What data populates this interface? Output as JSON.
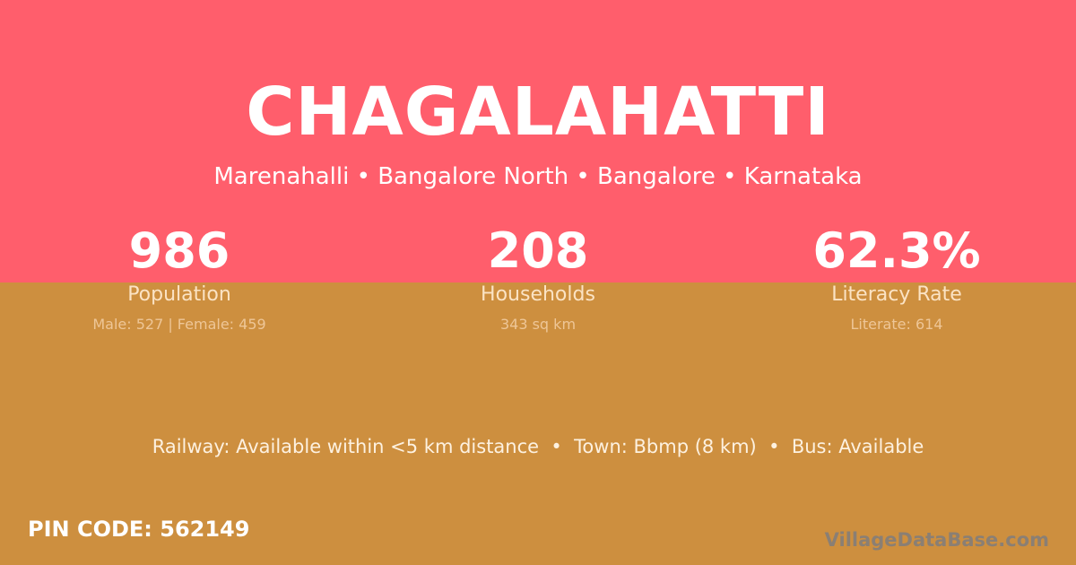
{
  "colors": {
    "top_background": "#FF5E6C",
    "bottom_background": "#CD8F3F"
  },
  "village": {
    "name": "CHAGALAHATTI",
    "location": "Marenahalli • Bangalore North • Bangalore • Karnataka"
  },
  "stats": [
    {
      "value": "986",
      "label": "Population",
      "detail": "Male: 527 | Female: 459"
    },
    {
      "value": "208",
      "label": "Households",
      "detail": "343 sq km"
    },
    {
      "value": "62.3%",
      "label": "Literacy Rate",
      "detail": "Literate: 614"
    }
  ],
  "facts": "Railway: Available within <5 km distance  •  Town: Bbmp (8 km)  •  Bus: Available",
  "pin_code": "PIN CODE: 562149",
  "brand": "VillageDataBase.com"
}
